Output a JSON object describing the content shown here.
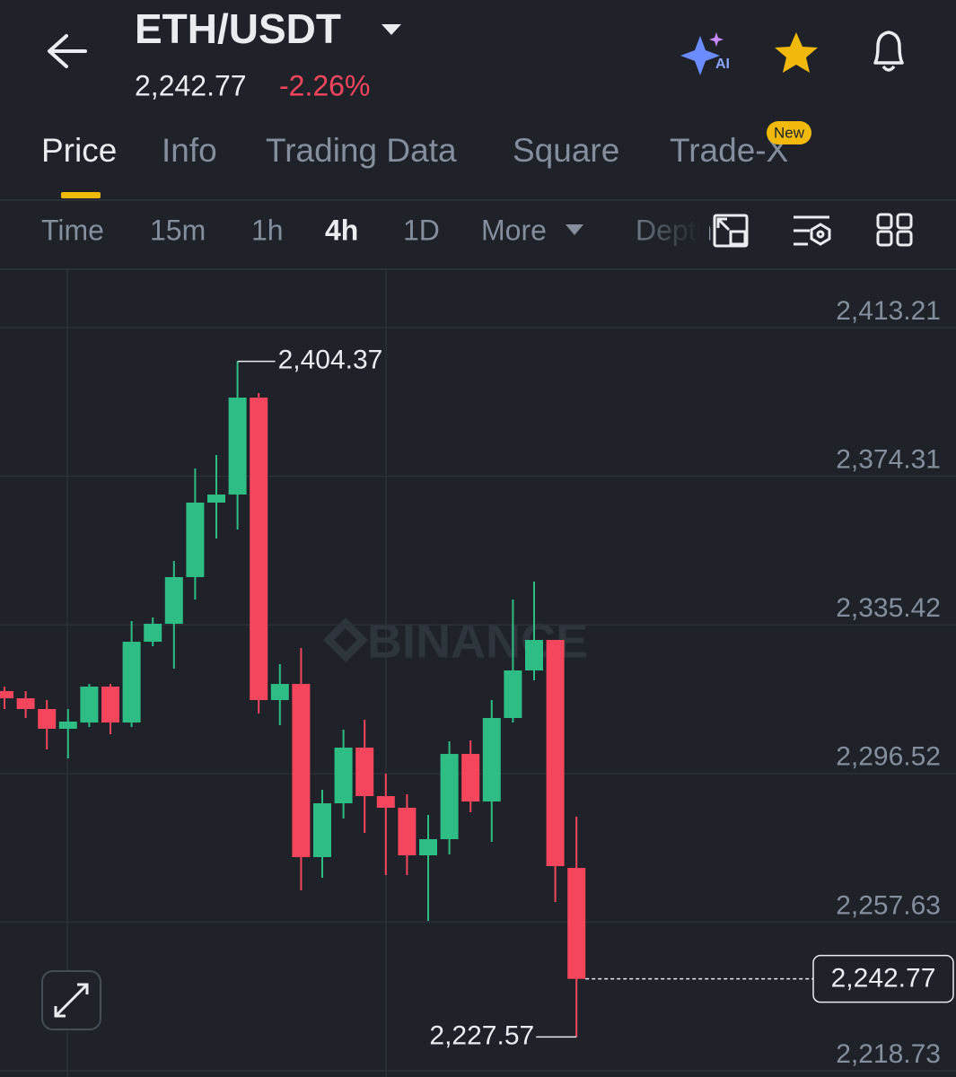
{
  "header": {
    "pair": "ETH/USDT",
    "price": "2,242.77",
    "change": "-2.26%"
  },
  "tabs": {
    "items": [
      "Price",
      "Info",
      "Trading Data",
      "Square",
      "Trade-X"
    ],
    "badge": "New"
  },
  "intervals": [
    "Time",
    "15m",
    "1h",
    "4h",
    "1D",
    "More",
    "Depth"
  ],
  "watermark": "BINANCE",
  "chart_data": {
    "type": "candlestick",
    "open": [
      2318.08,
      2316.2,
      2313.39,
      2308.22,
      2309.86,
      2319.26,
      2309.86,
      2331.0,
      2335.7,
      2347.91,
      2367.41,
      2369.52,
      2394.89,
      2315.73,
      2319.96,
      2274.63,
      2288.72,
      2303.29,
      2290.6,
      2287.55,
      2275.1,
      2279.33,
      2301.64,
      2289.19,
      2311.04,
      2323.49,
      2331.47,
      2271.81
    ],
    "high": [
      2319.26,
      2318.08,
      2315.73,
      2313.39,
      2319.96,
      2319.96,
      2336.4,
      2337.34,
      2352.14,
      2376.33,
      2379.86,
      2404.37,
      2396.06,
      2325.13,
      2329.36,
      2292.25,
      2307.98,
      2310.57,
      2296.47,
      2291.07,
      2285.67,
      2304.93,
      2305.17,
      2315.73,
      2342.04,
      2346.74,
      2331.47,
      2285.2
    ],
    "low": [
      2313.39,
      2311.04,
      2302.82,
      2300.47,
      2308.69,
      2306.81,
      2308.69,
      2329.83,
      2323.96,
      2342.04,
      2358.01,
      2360.36,
      2312.21,
      2309.16,
      2265.94,
      2269.23,
      2284.73,
      2280.97,
      2269.93,
      2269.93,
      2257.95,
      2275.33,
      2286.37,
      2278.62,
      2309.86,
      2320.9,
      2262.89,
      2227.57
    ],
    "close": [
      2316.2,
      2313.39,
      2308.22,
      2310.1,
      2319.26,
      2309.86,
      2331.0,
      2335.7,
      2347.91,
      2367.41,
      2369.52,
      2394.89,
      2315.73,
      2319.96,
      2274.63,
      2288.72,
      2303.29,
      2290.6,
      2287.55,
      2275.1,
      2279.33,
      2301.64,
      2289.19,
      2311.04,
      2323.49,
      2331.47,
      2272.28,
      2242.77
    ],
    "up_color": "#2ebd85",
    "down_color": "#f6465d",
    "ylim": [
      2217.09,
      2428.48
    ],
    "yticks": [
      {
        "value": 2413.21,
        "label": "2,413.21"
      },
      {
        "value": 2374.31,
        "label": "2,374.31"
      },
      {
        "value": 2335.42,
        "label": "2,335.42"
      },
      {
        "value": 2296.52,
        "label": "2,296.52"
      },
      {
        "value": 2257.63,
        "label": "2,257.63"
      },
      {
        "value": 2218.73,
        "label": "2,218.73"
      }
    ],
    "grid": true,
    "high_label": {
      "value": 2404.37,
      "label": "2,404.37"
    },
    "low_label": {
      "value": 2227.57,
      "label": "2,227.57"
    },
    "last_price": {
      "value": 2242.77,
      "label": "2,242.77"
    }
  }
}
